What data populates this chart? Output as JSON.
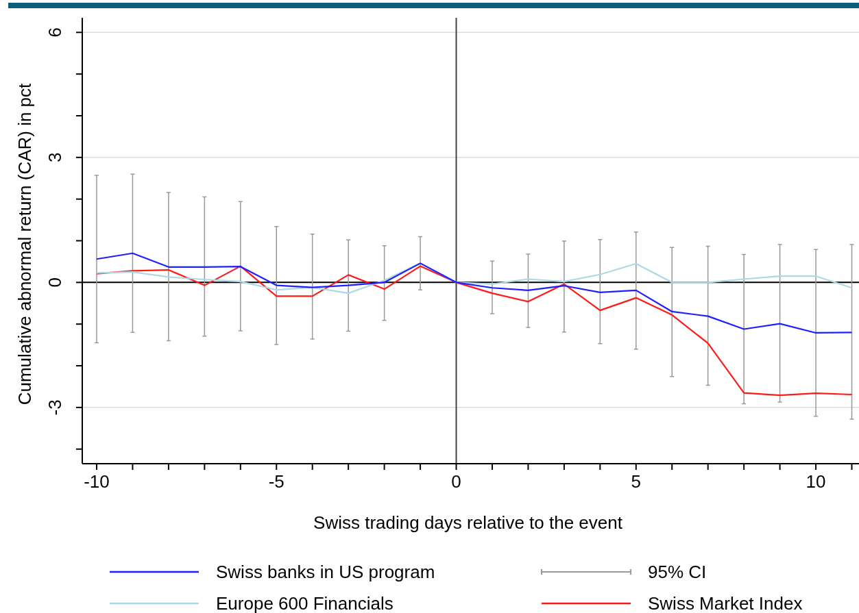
{
  "chart_data": {
    "type": "line",
    "xlabel": "Swiss trading days relative to the event",
    "ylabel": "Cumulative abnormal return (CAR) in pct",
    "x": [
      -10,
      -9,
      -8,
      -7,
      -6,
      -5,
      -4,
      -3,
      -2,
      -1,
      0,
      1,
      2,
      3,
      4,
      5,
      6,
      7,
      8,
      9,
      10,
      11
    ],
    "xlim": [
      -10.4,
      11.2
    ],
    "ylim": [
      -4.35,
      6.35
    ],
    "xticks": [
      -10,
      {
        "value": -9,
        "label": null
      },
      {
        "value": -8,
        "label": null
      },
      {
        "value": -7,
        "label": null
      },
      {
        "value": -6,
        "label": null
      },
      -5,
      {
        "value": -4,
        "label": null
      },
      {
        "value": -3,
        "label": null
      },
      {
        "value": -2,
        "label": null
      },
      {
        "value": -1,
        "label": null
      },
      0,
      {
        "value": 1,
        "label": null
      },
      {
        "value": 2,
        "label": null
      },
      {
        "value": 3,
        "label": null
      },
      {
        "value": 4,
        "label": null
      },
      5,
      {
        "value": 6,
        "label": null
      },
      {
        "value": 7,
        "label": null
      },
      {
        "value": 8,
        "label": null
      },
      {
        "value": 9,
        "label": null
      },
      10,
      {
        "value": 11,
        "label": null
      }
    ],
    "yticks": [
      {
        "value": -4,
        "label": null
      },
      -3,
      {
        "value": -2,
        "label": null
      },
      {
        "value": -1,
        "label": null
      },
      0,
      {
        "value": 1,
        "label": null
      },
      {
        "value": 2,
        "label": null
      },
      3,
      {
        "value": 4,
        "label": null
      },
      {
        "value": 5,
        "label": null
      },
      6
    ],
    "grid": "y",
    "legend": "bottom",
    "line_style": "solid",
    "annotations": [
      "95% CI"
    ],
    "ref_lines": [
      {
        "axis": "x",
        "value": 0,
        "color": "#444444"
      },
      {
        "axis": "y",
        "value": 0,
        "color": "#000000"
      }
    ],
    "series": [
      {
        "name": "Swiss banks in US program",
        "color": "#1f1fff",
        "values": [
          0.56,
          0.7,
          0.37,
          0.37,
          0.38,
          -0.07,
          -0.12,
          -0.07,
          0,
          0.46,
          0,
          -0.13,
          -0.19,
          -0.08,
          -0.24,
          -0.19,
          -0.7,
          -0.81,
          -1.12,
          -0.99,
          -1.21,
          -1.2
        ],
        "errors": [
          [
            -1.45,
            2.57
          ],
          [
            -1.2,
            2.6
          ],
          [
            -1.4,
            2.16
          ],
          [
            -1.29,
            2.05
          ],
          [
            -1.16,
            1.94
          ],
          [
            -1.49,
            1.34
          ],
          [
            -1.36,
            1.16
          ],
          [
            -1.17,
            1.02
          ],
          [
            -0.91,
            0.88
          ],
          [
            -0.18,
            1.1
          ],
          null,
          [
            -0.75,
            0.51
          ],
          [
            -1.08,
            0.68
          ],
          [
            -1.19,
            0.99
          ],
          [
            -1.47,
            1.03
          ],
          [
            -1.6,
            1.21
          ],
          [
            -2.26,
            0.84
          ],
          [
            -2.47,
            0.87
          ],
          [
            -2.91,
            0.67
          ],
          [
            -2.87,
            0.91
          ],
          [
            -3.21,
            0.79
          ],
          [
            -3.28,
            0.91
          ]
        ]
      },
      {
        "name": "Europe 600 Financials",
        "color": "#add8e6",
        "values": [
          0.23,
          0.25,
          0.13,
          0.07,
          0.02,
          -0.18,
          -0.12,
          -0.26,
          0.05,
          0.46,
          0,
          -0.04,
          0.08,
          0.02,
          0.19,
          0.45,
          0,
          0,
          0.08,
          0.15,
          0.15,
          -0.13
        ]
      },
      {
        "name": "Swiss Market Index",
        "color": "#ff1a1a",
        "values": [
          0.21,
          0.28,
          0.3,
          -0.07,
          0.39,
          -0.33,
          -0.33,
          0.18,
          -0.16,
          0.39,
          0,
          -0.26,
          -0.46,
          -0.04,
          -0.67,
          -0.37,
          -0.78,
          -1.46,
          -2.65,
          -2.71,
          -2.66,
          -2.69
        ]
      }
    ]
  }
}
